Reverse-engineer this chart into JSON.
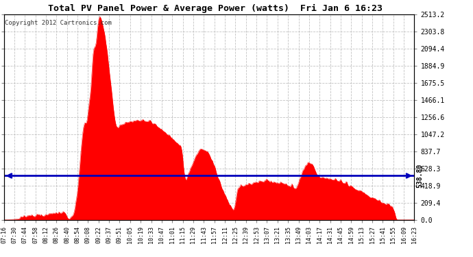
{
  "title": "Total PV Panel Power & Average Power (watts)  Fri Jan 6 16:23",
  "copyright": "Copyright 2012 Cartronics.com",
  "average_power": 538.8,
  "y_max": 2513.2,
  "y_ticks": [
    0.0,
    209.4,
    418.9,
    628.3,
    837.7,
    1047.2,
    1256.6,
    1466.1,
    1675.5,
    1884.9,
    2094.4,
    2303.8,
    2513.2
  ],
  "y_tick_labels": [
    "0.0",
    "209.4",
    "418.9",
    "628.3",
    "837.7",
    "1047.2",
    "1256.6",
    "1466.1",
    "1675.5",
    "1884.9",
    "2094.4",
    "2303.8",
    "2513.2"
  ],
  "x_tick_labels": [
    "07:16",
    "07:30",
    "07:44",
    "07:58",
    "08:12",
    "08:26",
    "08:40",
    "08:54",
    "09:08",
    "09:22",
    "09:37",
    "09:51",
    "10:05",
    "10:19",
    "10:33",
    "10:47",
    "11:01",
    "11:15",
    "11:29",
    "11:43",
    "11:57",
    "12:11",
    "12:25",
    "12:39",
    "12:53",
    "13:07",
    "13:21",
    "13:35",
    "13:49",
    "14:03",
    "14:17",
    "14:31",
    "14:45",
    "14:59",
    "15:13",
    "15:27",
    "15:41",
    "15:55",
    "16:09",
    "16:23"
  ],
  "fill_color": "#FF0000",
  "line_color": "#0000BB",
  "bg_color": "#FFFFFF",
  "grid_color": "#BBBBBB",
  "title_color": "#000000",
  "border_color": "#000000",
  "avg_label": "538.80"
}
